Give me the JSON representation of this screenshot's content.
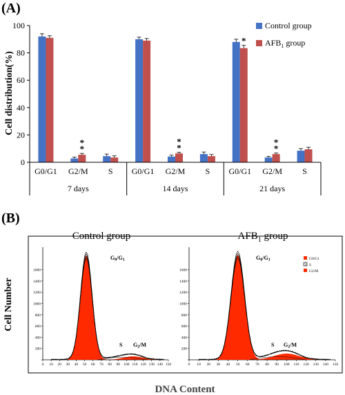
{
  "panelA": {
    "label": "(A)",
    "ylabel": "Cell distribution(%)",
    "ylim": [
      0,
      100
    ],
    "yticks": [
      0,
      20,
      40,
      60,
      80,
      100
    ],
    "legend_position": "top-right",
    "colors": {
      "control": "#4472C4",
      "afb1": "#C0504D"
    },
    "legend": {
      "control_label": "Control group",
      "afb1_prefix": "AFB",
      "afb1_sub": "1",
      "afb1_suffix": " group"
    }
  },
  "chart_data": [
    {
      "type": "bar",
      "categories": [
        "G0/G1",
        "G2/M",
        "S"
      ],
      "groups": [
        "7 days",
        "14 days",
        "21 days"
      ],
      "ylabel": "Cell distribution(%)",
      "ylim": [
        0,
        100
      ],
      "series": [
        {
          "name": "Control group",
          "values": [
            [
              92,
              2.8,
              4.5
            ],
            [
              90,
              4.2,
              6
            ],
            [
              88,
              3.5,
              8.5
            ]
          ],
          "errors": [
            [
              2,
              1,
              1.5
            ],
            [
              1.5,
              1,
              1.5
            ],
            [
              2,
              0.8,
              1.5
            ]
          ]
        },
        {
          "name": "AFB1 group",
          "values": [
            [
              91,
              5.5,
              3.5
            ],
            [
              89,
              6.5,
              4.5
            ],
            [
              83.5,
              6,
              9.5
            ]
          ],
          "errors": [
            [
              1.5,
              1,
              1.2
            ],
            [
              1.5,
              0.8,
              1.2
            ],
            [
              2,
              0.8,
              1.5
            ]
          ]
        }
      ],
      "significance": [
        {
          "group": 0,
          "category": 1,
          "series": 1,
          "mark": "**"
        },
        {
          "group": 1,
          "category": 1,
          "series": 1,
          "mark": "**"
        },
        {
          "group": 2,
          "category": 0,
          "series": 1,
          "mark": "*"
        },
        {
          "group": 2,
          "category": 1,
          "series": 1,
          "mark": "**"
        }
      ]
    },
    {
      "type": "area",
      "title": "Control group",
      "xlim": [
        0,
        150
      ],
      "xticks": [
        0,
        10,
        20,
        30,
        40,
        50,
        60,
        70,
        80,
        90,
        100,
        110,
        120,
        130,
        140,
        150
      ],
      "ylim": [
        0,
        2000
      ],
      "yticks": [
        0,
        200,
        400,
        600,
        800,
        1000,
        1200,
        1400,
        1600
      ],
      "series": [
        {
          "name": "G0/G1",
          "peak_x": 52,
          "peak_y": 1850,
          "width": 7
        },
        {
          "name": "S",
          "range": [
            65,
            125
          ],
          "level": 45
        },
        {
          "name": "G2/M",
          "peak_x": 108,
          "peak_y": 60,
          "width": 12
        }
      ]
    },
    {
      "type": "area",
      "title": "AFB1 group",
      "xlim": [
        0,
        150
      ],
      "xticks": [
        0,
        10,
        20,
        30,
        40,
        50,
        60,
        70,
        80,
        90,
        100,
        110,
        120,
        130,
        140,
        150
      ],
      "ylim": [
        0,
        2000
      ],
      "yticks": [
        0,
        200,
        400,
        600,
        800,
        1000,
        1200,
        1400,
        1600
      ],
      "series": [
        {
          "name": "G0/G1",
          "peak_x": 50,
          "peak_y": 1860,
          "width": 7
        },
        {
          "name": "S",
          "range": [
            62,
            120
          ],
          "level": 55
        },
        {
          "name": "G2/M",
          "peak_x": 100,
          "peak_y": 110,
          "width": 13
        }
      ]
    }
  ],
  "panelB": {
    "label": "(B)",
    "ylabel": "Cell Number",
    "xlabel": "DNA Content",
    "control_title": "Control group",
    "afb1_title_prefix": "AFB",
    "afb1_title_sub": "1",
    "afb1_title_suffix": " group",
    "peak_label_g0_main": "G",
    "peak_label_g0_sub": "0",
    "peak_label_slash": "/G",
    "peak_label_g1_sub": "1",
    "peak_label_s": "S",
    "peak_label_g2_main": "G",
    "peak_label_g2_sub": "2",
    "peak_label_g2_suffix": "/M",
    "mini_legend": [
      "G0/G1",
      "S",
      "G2/M"
    ],
    "fill_color": "#FF2A00"
  }
}
